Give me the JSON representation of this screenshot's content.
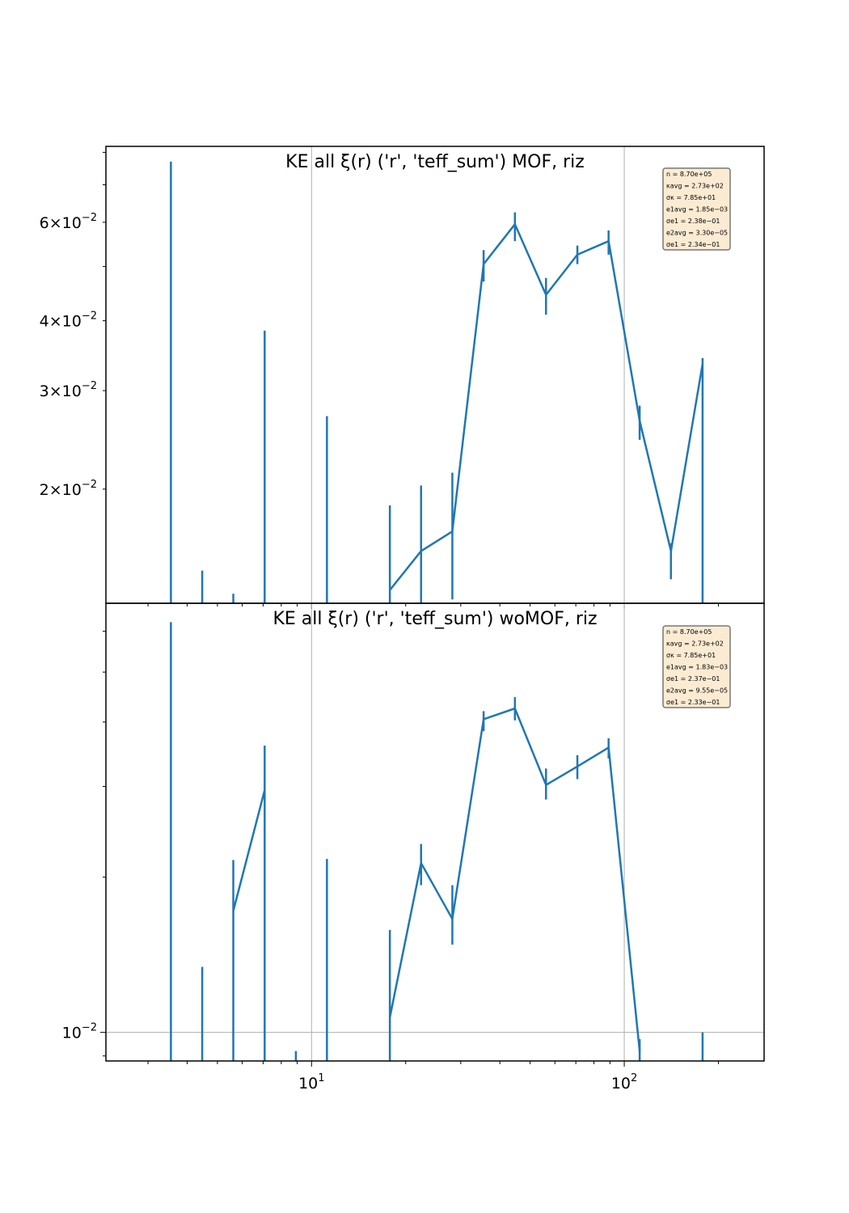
{
  "chart_data": [
    {
      "type": "line",
      "title": "KE all ξ(r) ('r', 'teff_sum') MOF,  riz",
      "xscale": "log",
      "yscale": "log",
      "xlim": [
        2.2,
        280
      ],
      "ylim": [
        0.0125,
        0.082
      ],
      "grid": "x major only",
      "x_tick_labels": [
        "10^1",
        "10^2"
      ],
      "y_tick_labels": [
        "6×10^−2",
        "4×10^−2",
        "3×10^−2",
        "2×10^−2"
      ],
      "stats_box": [
        "n = 8.70e+05",
        "κavg = 2.73e+02",
        "σκ = 7.85e+01",
        "e1avg = 1.85e−03",
        "σe1 = 2.38e−01",
        "e2avg = 3.30e−05",
        "σe1 = 2.34e−01"
      ],
      "series": [
        {
          "x": [
            3.55,
            4.47,
            5.62,
            7.08,
            8.91,
            11.2,
            14.1,
            17.8,
            22.4,
            28.2,
            35.5,
            44.7,
            56.2,
            70.8,
            89.1,
            112,
            141,
            178
          ],
          "y": [
            0.048,
            null,
            null,
            null,
            null,
            null,
            null,
            0.0132,
            0.0155,
            0.0168,
            0.0505,
            0.0595,
            0.0445,
            0.0525,
            0.0555,
            0.0265,
            0.0155,
            0.0335
          ],
          "err_low": [
            0.0125,
            0.0125,
            0.0125,
            0.0125,
            0.0125,
            0.0125,
            0.0125,
            0.0125,
            0.0125,
            0.0127,
            0.047,
            0.0555,
            0.041,
            0.0505,
            0.0525,
            0.0245,
            0.0138,
            0.0125
          ],
          "err_high": [
            0.077,
            0.0143,
            0.013,
            0.0384,
            null,
            0.027,
            null,
            0.0187,
            0.0203,
            0.0214,
            0.0535,
            0.0625,
            0.0477,
            0.0545,
            0.058,
            0.0282,
            0.016,
            0.0343
          ]
        }
      ]
    },
    {
      "type": "line",
      "title": "KE all ξ(r) ('r', 'teff_sum') woMOF,  riz",
      "xscale": "log",
      "yscale": "log",
      "xlim": [
        2.2,
        280
      ],
      "ylim": [
        0.0088,
        0.068
      ],
      "grid": "x major and y major",
      "x_tick_labels": [
        "10^1",
        "10^2"
      ],
      "y_tick_labels": [
        "10^−2"
      ],
      "stats_box": [
        "n = 8.70e+05",
        "κavg = 2.73e+02",
        "σκ = 7.85e+01",
        "e1avg = 1.83e−03",
        "σe1 = 2.37e−01",
        "e2avg = 9.55e−05",
        "σe1 = 2.33e−01"
      ],
      "series": [
        {
          "x": [
            3.55,
            4.47,
            5.62,
            7.08,
            8.91,
            11.2,
            14.1,
            17.8,
            22.4,
            28.2,
            35.5,
            44.7,
            56.2,
            70.8,
            89.1,
            112,
            141,
            178
          ],
          "y": [
            0.052,
            null,
            0.0172,
            0.0295,
            null,
            null,
            null,
            0.0107,
            0.0213,
            0.0166,
            0.0405,
            0.0425,
            0.0302,
            0.0328,
            0.0357,
            0.0092,
            null,
            0.0095
          ],
          "err_low": [
            0.0088,
            0.0088,
            0.0088,
            0.0088,
            0.0088,
            0.0088,
            null,
            0.0088,
            0.0193,
            0.0148,
            0.0384,
            0.0403,
            0.0283,
            0.031,
            0.034,
            0.0088,
            null,
            0.0088
          ],
          "err_high": [
            0.0625,
            0.0134,
            0.0216,
            0.036,
            0.0092,
            0.0217,
            null,
            0.0158,
            0.0232,
            0.0193,
            0.042,
            0.0447,
            0.0325,
            0.0345,
            0.0372,
            0.0097,
            null,
            0.01
          ]
        }
      ]
    }
  ]
}
